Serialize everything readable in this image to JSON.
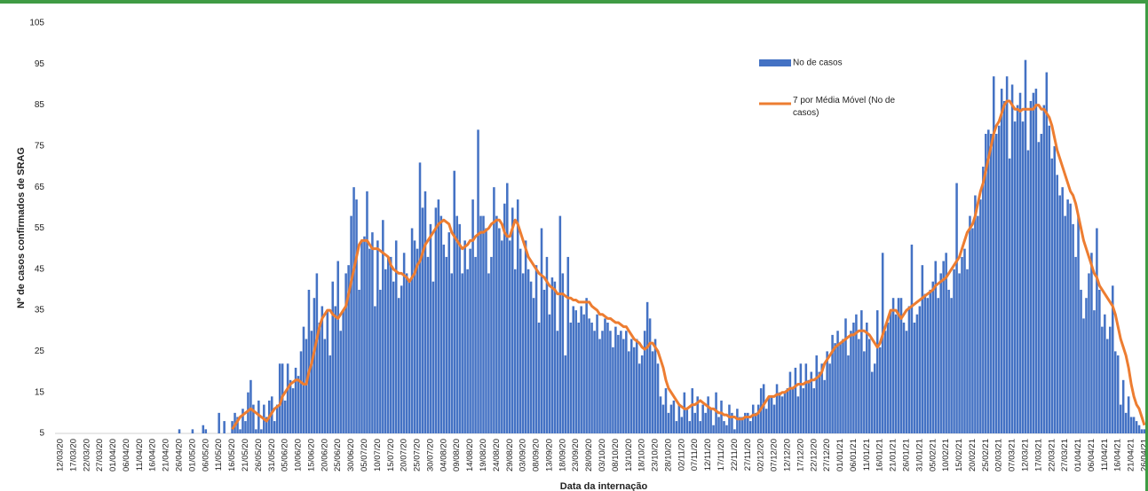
{
  "chart_data": {
    "type": "bar",
    "x_label": "Data da internação",
    "y_label": "Nº de casos confirmados de SRAG",
    "ylim": [
      5,
      105
    ],
    "yticks": [
      5,
      15,
      25,
      35,
      45,
      55,
      65,
      75,
      85,
      95,
      105
    ],
    "grid": false,
    "categories": [
      "12/03/20",
      null,
      null,
      null,
      null,
      "17/03/20",
      null,
      null,
      null,
      null,
      "22/03/20",
      null,
      null,
      null,
      null,
      "27/03/20",
      null,
      null,
      null,
      null,
      "01/04/20",
      null,
      null,
      null,
      null,
      "06/04/20",
      null,
      null,
      null,
      null,
      "11/04/20",
      null,
      null,
      null,
      null,
      "16/04/20",
      null,
      null,
      null,
      null,
      "21/04/20",
      null,
      null,
      null,
      null,
      "26/04/20",
      null,
      null,
      null,
      null,
      "01/05/20",
      null,
      null,
      null,
      null,
      "06/05/20",
      null,
      null,
      null,
      null,
      "11/05/20",
      null,
      null,
      null,
      null,
      "16/05/20",
      null,
      null,
      null,
      null,
      "21/05/20",
      null,
      null,
      null,
      null,
      "26/05/20",
      null,
      null,
      null,
      null,
      "31/05/20",
      null,
      null,
      null,
      null,
      "05/06/20",
      null,
      null,
      null,
      null,
      "10/06/20",
      null,
      null,
      null,
      null,
      "15/06/20",
      null,
      null,
      null,
      null,
      "20/06/20",
      null,
      null,
      null,
      null,
      "25/06/20",
      null,
      null,
      null,
      null,
      "30/06/20",
      null,
      null,
      null,
      null,
      "05/07/20",
      null,
      null,
      null,
      null,
      "10/07/20",
      null,
      null,
      null,
      null,
      "15/07/20",
      null,
      null,
      null,
      null,
      "20/07/20",
      null,
      null,
      null,
      null,
      "25/07/20",
      null,
      null,
      null,
      null,
      "30/07/20",
      null,
      null,
      null,
      null,
      "04/08/20",
      null,
      null,
      null,
      null,
      "09/08/20",
      null,
      null,
      null,
      null,
      "14/08/20",
      null,
      null,
      null,
      null,
      "19/08/20",
      null,
      null,
      null,
      null,
      "24/08/20",
      null,
      null,
      null,
      null,
      "29/08/20",
      null,
      null,
      null,
      null,
      "03/09/20",
      null,
      null,
      null,
      null,
      "08/09/20",
      null,
      null,
      null,
      null,
      "13/09/20",
      null,
      null,
      null,
      null,
      "18/09/20",
      null,
      null,
      null,
      null,
      "23/09/20",
      null,
      null,
      null,
      null,
      "28/09/20",
      null,
      null,
      null,
      null,
      "03/10/20",
      null,
      null,
      null,
      null,
      "08/10/20",
      null,
      null,
      null,
      null,
      "13/10/20",
      null,
      null,
      null,
      null,
      "18/10/20",
      null,
      null,
      null,
      null,
      "23/10/20",
      null,
      null,
      null,
      null,
      "28/10/20",
      null,
      null,
      null,
      null,
      "02/11/20",
      null,
      null,
      null,
      null,
      "07/11/20",
      null,
      null,
      null,
      null,
      "12/11/20",
      null,
      null,
      null,
      null,
      "17/11/20",
      null,
      null,
      null,
      null,
      "22/11/20",
      null,
      null,
      null,
      null,
      "27/11/20",
      null,
      null,
      null,
      null,
      "02/12/20",
      null,
      null,
      null,
      null,
      "07/12/20",
      null,
      null,
      null,
      null,
      "12/12/20",
      null,
      null,
      null,
      null,
      "17/12/20",
      null,
      null,
      null,
      null,
      "22/12/20",
      null,
      null,
      null,
      null,
      "27/12/20",
      null,
      null,
      null,
      null,
      "01/01/21",
      null,
      null,
      null,
      null,
      "06/01/21",
      null,
      null,
      null,
      null,
      "11/01/21",
      null,
      null,
      null,
      null,
      "16/01/21",
      null,
      null,
      null,
      null,
      "21/01/21",
      null,
      null,
      null,
      null,
      "26/01/21",
      null,
      null,
      null,
      null,
      "31/01/21",
      null,
      null,
      null,
      null,
      "05/02/21",
      null,
      null,
      null,
      null,
      "10/02/21",
      null,
      null,
      null,
      null,
      "15/02/21",
      null,
      null,
      null,
      null,
      "20/02/21",
      null,
      null,
      null,
      null,
      "25/02/21",
      null,
      null,
      null,
      null,
      "02/03/21",
      null,
      null,
      null,
      null,
      "07/03/21",
      null,
      null,
      null,
      null,
      "12/03/21",
      null,
      null,
      null,
      null,
      "17/03/21",
      null,
      null,
      null,
      null,
      "22/03/21",
      null,
      null,
      null,
      null,
      "27/03/21",
      null,
      null,
      null,
      null,
      "01/04/21",
      null,
      null,
      null,
      null,
      "06/04/21",
      null,
      null,
      null,
      null,
      "11/04/21",
      null,
      null,
      null,
      null,
      "16/04/21",
      null,
      null,
      null,
      null,
      "21/04/21",
      null,
      null,
      null,
      null,
      "26/04/21"
    ],
    "series": [
      {
        "name": "No de casos",
        "type": "bar",
        "color": "#4472c4",
        "values": [
          1,
          0,
          1,
          0,
          1,
          1,
          0,
          0,
          1,
          1,
          1,
          1,
          0,
          1,
          1,
          1,
          1,
          1,
          0,
          1,
          1,
          1,
          1,
          1,
          1,
          1,
          1,
          1,
          1,
          1,
          1,
          1,
          1,
          1,
          1,
          1,
          1,
          2,
          1,
          1,
          1,
          2,
          2,
          1,
          3,
          6,
          2,
          1,
          3,
          1,
          6,
          2,
          5,
          3,
          7,
          6,
          5,
          4,
          3,
          5,
          10,
          4,
          8,
          5,
          3,
          8,
          10,
          9,
          6,
          11,
          8,
          15,
          18,
          12,
          6,
          13,
          6,
          12,
          9,
          13,
          14,
          8,
          12,
          22,
          22,
          13,
          22,
          18,
          16,
          21,
          19,
          25,
          31,
          28,
          40,
          30,
          38,
          44,
          32,
          36,
          28,
          35,
          24,
          42,
          36,
          47,
          30,
          35,
          44,
          46,
          58,
          65,
          62,
          40,
          52,
          53,
          64,
          50,
          54,
          36,
          52,
          40,
          57,
          45,
          48,
          48,
          42,
          52,
          38,
          41,
          49,
          44,
          42,
          55,
          52,
          50,
          71,
          60,
          64,
          48,
          56,
          42,
          60,
          62,
          58,
          51,
          48,
          54,
          44,
          69,
          58,
          56,
          44,
          52,
          45,
          50,
          62,
          48,
          79,
          58,
          58,
          55,
          44,
          48,
          65,
          58,
          55,
          52,
          61,
          66,
          52,
          60,
          45,
          62,
          50,
          44,
          52,
          45,
          42,
          38,
          46,
          32,
          55,
          40,
          48,
          34,
          43,
          42,
          30,
          58,
          44,
          24,
          48,
          32,
          36,
          35,
          32,
          36,
          34,
          38,
          33,
          32,
          30,
          34,
          28,
          30,
          33,
          32,
          30,
          26,
          31,
          29,
          30,
          28,
          30,
          25,
          28,
          26,
          28,
          22,
          24,
          30,
          37,
          33,
          25,
          28,
          22,
          14,
          12,
          16,
          10,
          12,
          13,
          8,
          12,
          9,
          15,
          11,
          8,
          16,
          10,
          14,
          8,
          12,
          10,
          14,
          11,
          7,
          15,
          9,
          13,
          8,
          7,
          12,
          10,
          6,
          11,
          9,
          9,
          10,
          10,
          8,
          12,
          10,
          12,
          16,
          17,
          11,
          14,
          14,
          12,
          17,
          15,
          14,
          15,
          16,
          20,
          16,
          21,
          14,
          22,
          16,
          22,
          18,
          20,
          16,
          24,
          20,
          22,
          18,
          25,
          22,
          29,
          27,
          30,
          27,
          28,
          33,
          24,
          30,
          32,
          34,
          28,
          35,
          25,
          32,
          28,
          20,
          22,
          35,
          26,
          49,
          30,
          32,
          35,
          38,
          34,
          38,
          38,
          32,
          30,
          36,
          51,
          32,
          34,
          36,
          46,
          39,
          38,
          40,
          42,
          47,
          38,
          44,
          47,
          49,
          40,
          38,
          45,
          66,
          44,
          48,
          50,
          45,
          58,
          55,
          63,
          58,
          62,
          70,
          78,
          79,
          78,
          92,
          78,
          80,
          89,
          86,
          92,
          72,
          90,
          81,
          85,
          88,
          81,
          96,
          74,
          86,
          88,
          89,
          76,
          78,
          85,
          93,
          80,
          72,
          75,
          68,
          63,
          65,
          58,
          62,
          61,
          56,
          48,
          58,
          40,
          33,
          38,
          44,
          49,
          35,
          55,
          40,
          31,
          34,
          28,
          31,
          41,
          25,
          24,
          12,
          18,
          10,
          14,
          9,
          9,
          8,
          7,
          6,
          6
        ]
      },
      {
        "name": "7 por Média Móvel (No de casos)",
        "type": "line",
        "color": "#ed7d31",
        "values": [
          null,
          null,
          null,
          null,
          null,
          null,
          null,
          null,
          null,
          null,
          null,
          null,
          null,
          null,
          null,
          null,
          null,
          null,
          null,
          null,
          null,
          null,
          null,
          null,
          null,
          null,
          null,
          null,
          null,
          null,
          null,
          null,
          null,
          null,
          null,
          null,
          null,
          null,
          null,
          null,
          null,
          null,
          null,
          null,
          null,
          null,
          null,
          null,
          null,
          null,
          null,
          null,
          null,
          null,
          null,
          null,
          null,
          null,
          null,
          null,
          null,
          null,
          null,
          null,
          null,
          6,
          7,
          8,
          9,
          9.5,
          10,
          10.5,
          11,
          10.5,
          10,
          9.5,
          9,
          8.5,
          8,
          9,
          10,
          11,
          11.5,
          12,
          14,
          15,
          16,
          17,
          17.5,
          18,
          18,
          17.5,
          17,
          17,
          20,
          22,
          25,
          28,
          31,
          33,
          34,
          35,
          35,
          34,
          33.5,
          33,
          34,
          35,
          36,
          39,
          42,
          45,
          48,
          51,
          52,
          52,
          52,
          51,
          50,
          50,
          50,
          49.5,
          49,
          48.5,
          48,
          46,
          45,
          44.5,
          44,
          44,
          43.5,
          43,
          42,
          43,
          44,
          46,
          47,
          49,
          51,
          52,
          53,
          54,
          55,
          56,
          56.5,
          57,
          56.5,
          56,
          54,
          53,
          52,
          51,
          50,
          50.5,
          51,
          52,
          52,
          53,
          53.5,
          54,
          54,
          54.5,
          55,
          56,
          56.5,
          57,
          57,
          56,
          54,
          53,
          53,
          55,
          57,
          56,
          54,
          52,
          50,
          48,
          47,
          46,
          45,
          44,
          43.5,
          43,
          42,
          41,
          40.5,
          40,
          39,
          39,
          39,
          38.5,
          38,
          38,
          37.5,
          37.5,
          37,
          37,
          37,
          37,
          37,
          36,
          35.5,
          35,
          34,
          34,
          33.5,
          33,
          33,
          32.5,
          32,
          32,
          31.5,
          31,
          31,
          30,
          29,
          28,
          27.5,
          27,
          26,
          25.5,
          26,
          27,
          27,
          26,
          25,
          23,
          21,
          18,
          16,
          15,
          14,
          13,
          12,
          11.5,
          11,
          11,
          11.5,
          12,
          12,
          12.5,
          13,
          12.5,
          12,
          11.5,
          11,
          11,
          10.5,
          10,
          10,
          9.5,
          9.5,
          9,
          9,
          9,
          8.5,
          8.5,
          8.5,
          9,
          9,
          9,
          9.5,
          9.5,
          10,
          11,
          12,
          13,
          14,
          14,
          14,
          14.5,
          14.5,
          15,
          15,
          15.5,
          16,
          16,
          16.5,
          17,
          17,
          17,
          17.5,
          17.5,
          18,
          18,
          18.5,
          19,
          20,
          22,
          23,
          24,
          25,
          26,
          26.5,
          27,
          27.5,
          28,
          28.5,
          29,
          29,
          29.5,
          30,
          30,
          30,
          29.5,
          29,
          28,
          27,
          26,
          27,
          29,
          31,
          33,
          35,
          35,
          35,
          34,
          33,
          34,
          35,
          35.5,
          36,
          36.5,
          37,
          37.5,
          38,
          38.5,
          39,
          39.5,
          40,
          41,
          41.5,
          42,
          42.5,
          43,
          44,
          45,
          46,
          47,
          48,
          50,
          52,
          54,
          55,
          56,
          58,
          61,
          64,
          66,
          69,
          72,
          75,
          78,
          80,
          81,
          83,
          85,
          86,
          86,
          85,
          84,
          84,
          83.5,
          84,
          84,
          84,
          84,
          84,
          85,
          85,
          84,
          84,
          83,
          82,
          80,
          77,
          74,
          72,
          70,
          68,
          66,
          64,
          63,
          61,
          58,
          55,
          52,
          50,
          48,
          46,
          44,
          43,
          41,
          40,
          39,
          38,
          37,
          36,
          34,
          31,
          28,
          26,
          24,
          21,
          17,
          14,
          12,
          11,
          9,
          7
        ]
      }
    ]
  }
}
